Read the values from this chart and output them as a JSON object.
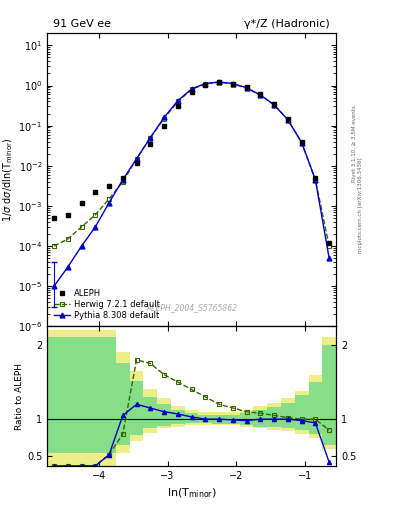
{
  "title_left": "91 GeV ee",
  "title_right": "γ*/Z (Hadronic)",
  "ylabel_main": "1/σ dσ/dln(T$_\\mathrm{minor}$)",
  "ylabel_ratio": "Ratio to ALEPH",
  "xlabel": "ln(T$_{\\mathrm{minor}}$)",
  "right_label_top": "Rivet 3.1.10, ≥ 3.5M events",
  "right_label_bottom": "mcplots.cern.ch [arXiv:1306.3436]",
  "watermark": "ALEPH_2004_S5765862",
  "xlim": [
    -4.75,
    -0.55
  ],
  "ylim_main": [
    1e-06,
    20
  ],
  "ylim_ratio": [
    0.37,
    2.25
  ],
  "xticks": [
    -4,
    -3,
    -2,
    -1
  ],
  "legend": [
    "ALEPH",
    "Herwig 7.2.1 default",
    "Pythia 8.308 default"
  ],
  "aleph_x": [
    -4.65,
    -4.45,
    -4.25,
    -4.05,
    -3.85,
    -3.65,
    -3.45,
    -3.25,
    -3.05,
    -2.85,
    -2.65,
    -2.45,
    -2.25,
    -2.05,
    -1.85,
    -1.65,
    -1.45,
    -1.25,
    -1.05,
    -0.85,
    -0.65
  ],
  "aleph_y": [
    0.0005,
    0.0006,
    0.0012,
    0.0022,
    0.0032,
    0.005,
    0.012,
    0.035,
    0.1,
    0.3,
    0.7,
    1.05,
    1.2,
    1.1,
    0.9,
    0.6,
    0.35,
    0.15,
    0.04,
    0.005,
    0.00012
  ],
  "herwig_x": [
    -4.65,
    -4.45,
    -4.25,
    -4.05,
    -3.85,
    -3.65,
    -3.45,
    -3.25,
    -3.05,
    -2.85,
    -2.65,
    -2.45,
    -2.25,
    -2.05,
    -1.85,
    -1.65,
    -1.45,
    -1.25,
    -1.05,
    -0.85,
    -0.65
  ],
  "herwig_y": [
    0.0001,
    0.00015,
    0.0003,
    0.0006,
    0.0015,
    0.004,
    0.015,
    0.05,
    0.15,
    0.4,
    0.8,
    1.1,
    1.2,
    1.1,
    0.85,
    0.58,
    0.33,
    0.14,
    0.038,
    0.0045,
    0.0001
  ],
  "pythia_x": [
    -4.65,
    -4.45,
    -4.25,
    -4.05,
    -3.85,
    -3.65,
    -3.45,
    -3.25,
    -3.05,
    -2.85,
    -2.65,
    -2.45,
    -2.25,
    -2.05,
    -1.85,
    -1.65,
    -1.45,
    -1.25,
    -1.05,
    -0.85,
    -0.65
  ],
  "pythia_y": [
    1e-05,
    3e-05,
    0.0001,
    0.0003,
    0.0012,
    0.0045,
    0.015,
    0.05,
    0.16,
    0.42,
    0.82,
    1.12,
    1.22,
    1.12,
    0.88,
    0.58,
    0.33,
    0.14,
    0.038,
    0.0045,
    5e-05
  ],
  "herwig_ratio": [
    0.37,
    0.37,
    0.37,
    0.37,
    0.52,
    0.8,
    1.8,
    1.75,
    1.6,
    1.5,
    1.4,
    1.3,
    1.2,
    1.15,
    1.1,
    1.08,
    1.05,
    1.02,
    1.0,
    1.0,
    0.85
  ],
  "pythia_ratio": [
    0.37,
    0.37,
    0.37,
    0.37,
    0.52,
    1.05,
    1.2,
    1.15,
    1.1,
    1.07,
    1.03,
    1.0,
    1.0,
    0.99,
    0.98,
    1.0,
    1.0,
    1.0,
    0.98,
    0.95,
    0.42
  ],
  "band_yellow_x": [
    -4.75,
    -4.55,
    -4.35,
    -4.15,
    -3.95,
    -3.75,
    -3.55,
    -3.35,
    -3.15,
    -2.95,
    -2.75,
    -2.55,
    -2.35,
    -2.15,
    -1.95,
    -1.75,
    -1.55,
    -1.35,
    -1.15,
    -0.95,
    -0.75,
    -0.55
  ],
  "band_yellow_lo": [
    0.37,
    0.37,
    0.37,
    0.37,
    0.37,
    0.55,
    0.7,
    0.82,
    0.88,
    0.9,
    0.92,
    0.92,
    0.92,
    0.92,
    0.9,
    0.88,
    0.86,
    0.84,
    0.8,
    0.75,
    0.6,
    0.37
  ],
  "band_yellow_hi": [
    2.2,
    2.2,
    2.2,
    2.2,
    2.2,
    1.9,
    1.65,
    1.4,
    1.28,
    1.18,
    1.13,
    1.1,
    1.1,
    1.1,
    1.13,
    1.18,
    1.22,
    1.28,
    1.38,
    1.6,
    2.1,
    2.2
  ],
  "band_green_x": [
    -4.75,
    -4.55,
    -4.35,
    -4.15,
    -3.95,
    -3.75,
    -3.55,
    -3.35,
    -3.15,
    -2.95,
    -2.75,
    -2.55,
    -2.35,
    -2.15,
    -1.95,
    -1.75,
    -1.55,
    -1.35,
    -1.15,
    -0.95,
    -0.75,
    -0.55
  ],
  "band_green_lo": [
    0.55,
    0.55,
    0.55,
    0.55,
    0.55,
    0.65,
    0.78,
    0.88,
    0.91,
    0.93,
    0.95,
    0.95,
    0.94,
    0.94,
    0.92,
    0.9,
    0.9,
    0.88,
    0.85,
    0.8,
    0.65,
    0.55
  ],
  "band_green_hi": [
    2.1,
    2.1,
    2.1,
    2.1,
    2.1,
    1.75,
    1.52,
    1.3,
    1.2,
    1.13,
    1.08,
    1.06,
    1.06,
    1.06,
    1.08,
    1.13,
    1.17,
    1.22,
    1.32,
    1.5,
    2.0,
    2.1
  ],
  "colors": {
    "aleph": "#000000",
    "herwig": "#336600",
    "pythia": "#0000CC",
    "band_yellow": "#EEEE88",
    "band_green": "#88DD88"
  }
}
